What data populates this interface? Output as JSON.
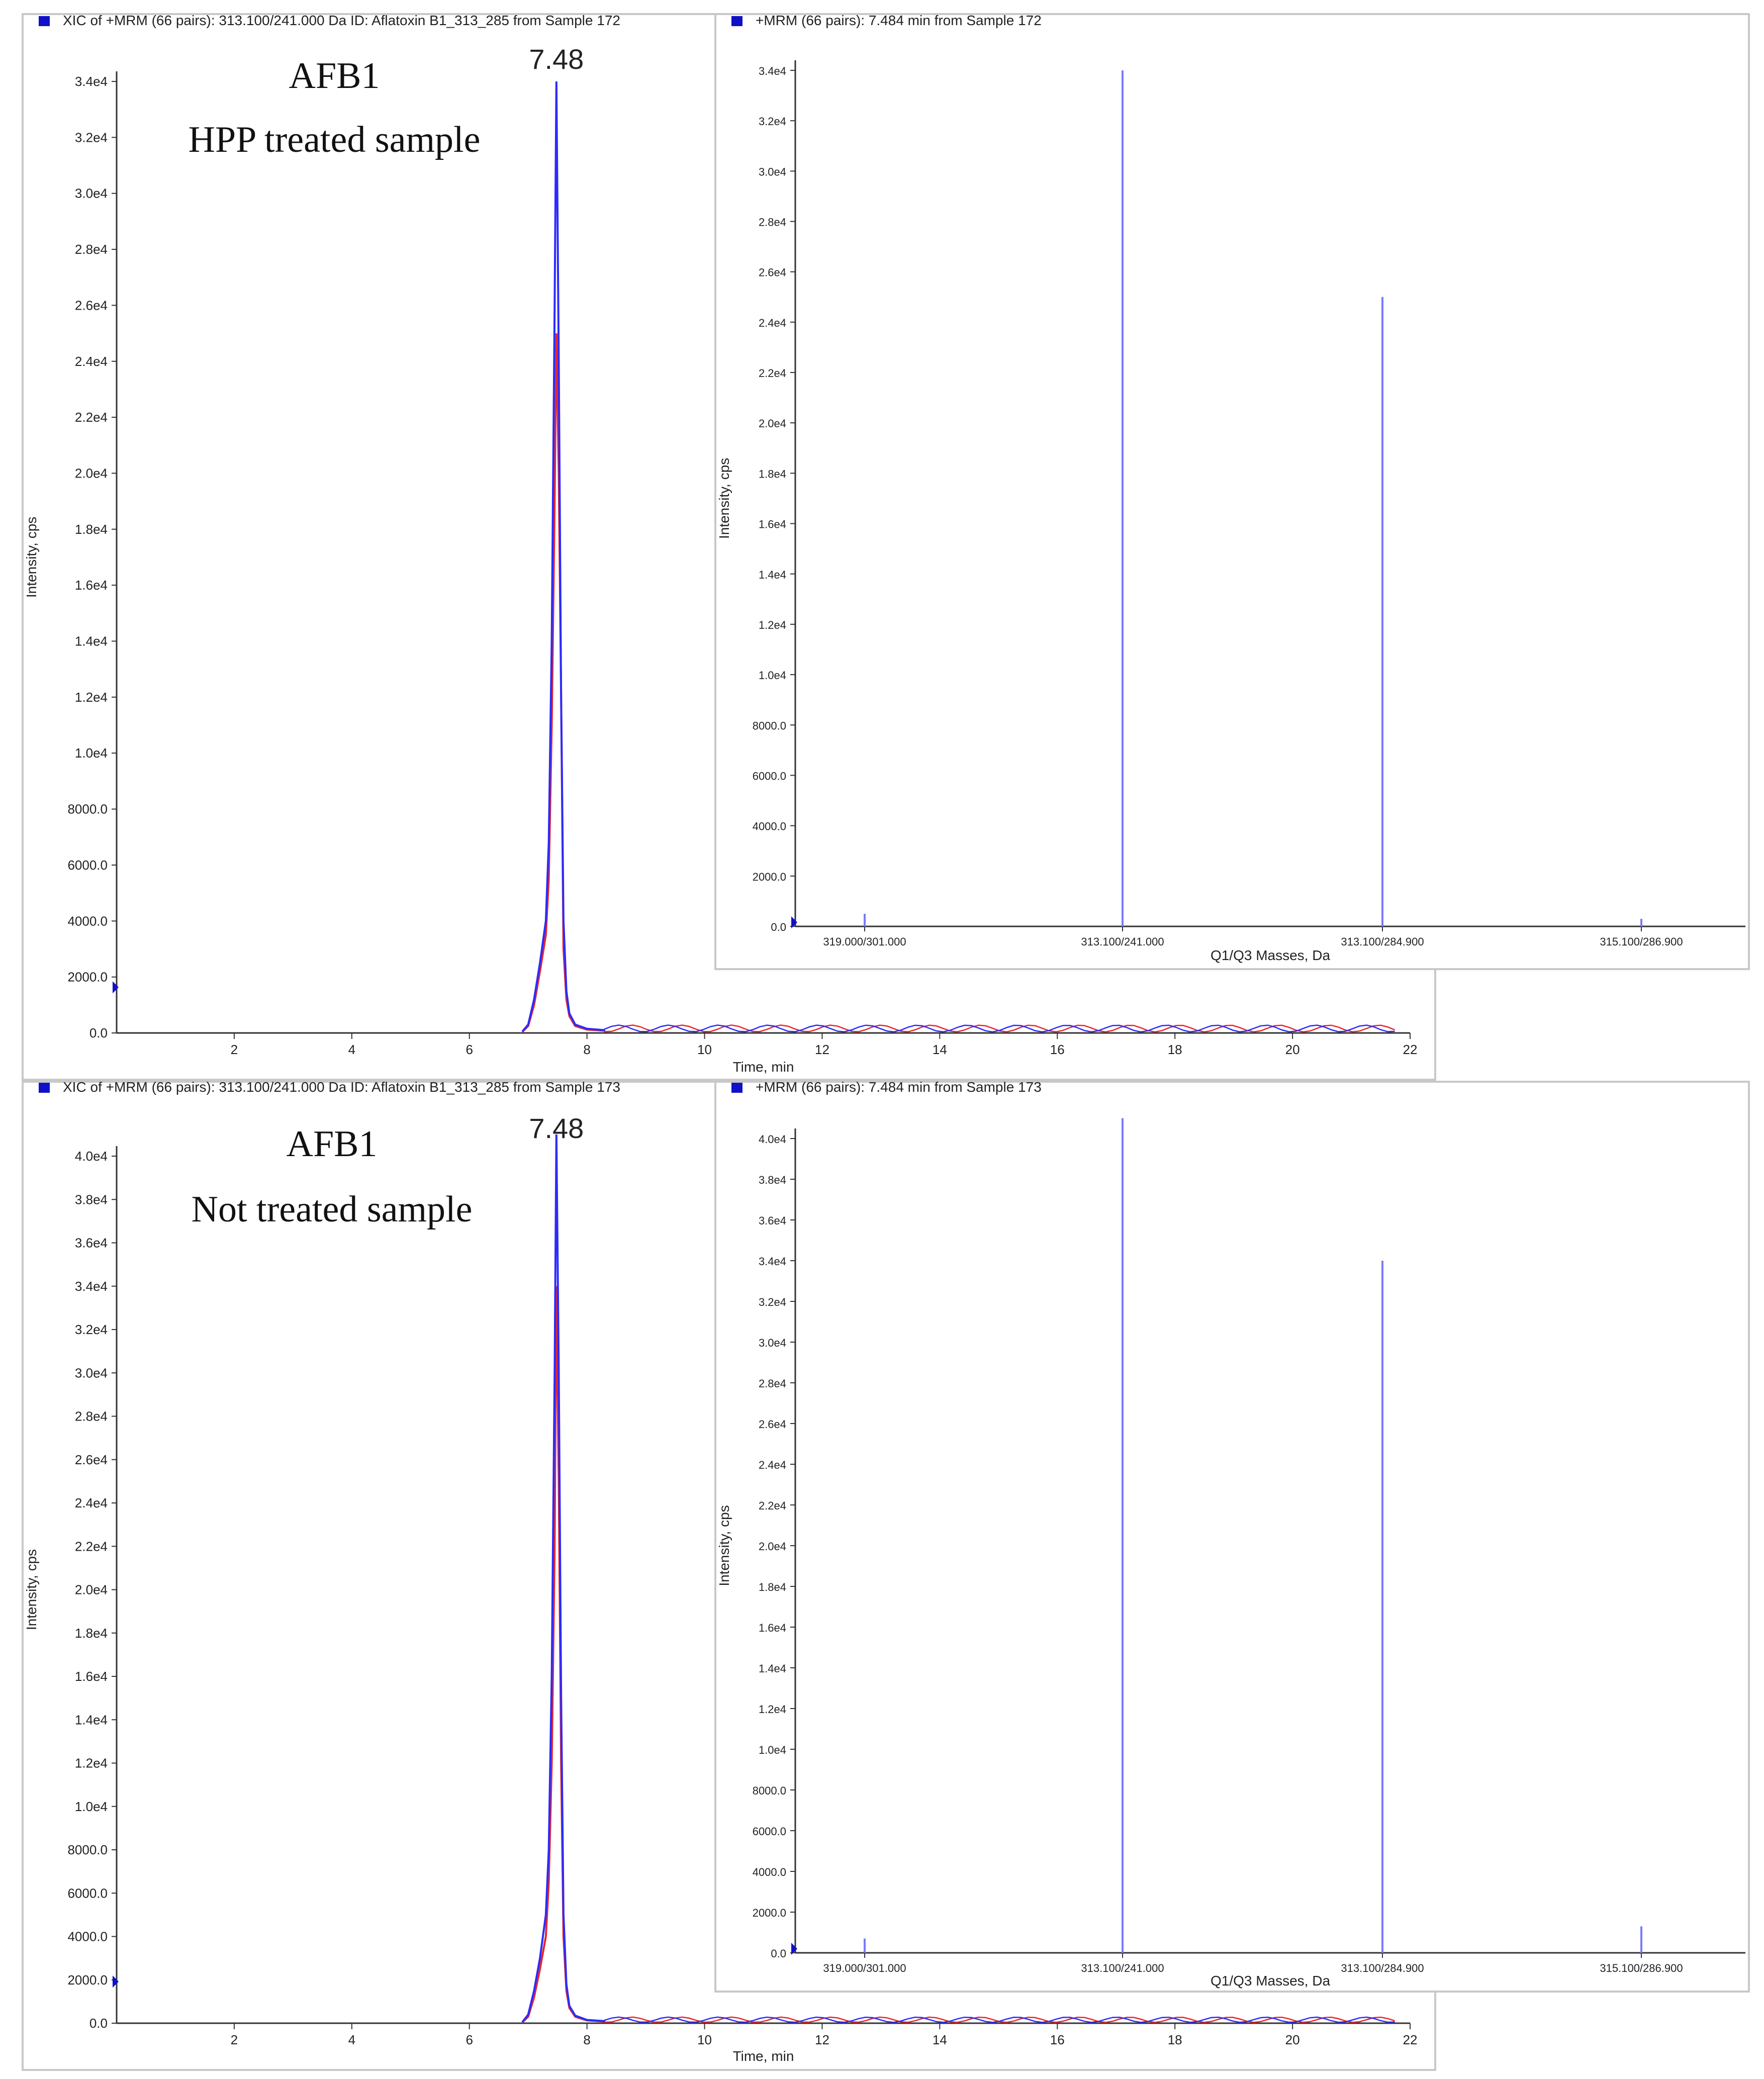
{
  "colors": {
    "blue": "#2b2bff",
    "red": "#e8262b",
    "bar": "#7a7aff",
    "frame": "#c8c8c8",
    "axis": "#333333"
  },
  "chart_data": [
    {
      "panel": "top",
      "type": "line",
      "title": "XIC of +MRM (66 pairs): 313.100/241.000 Da ID: Aflatoxin B1_313_285 from Sample 172",
      "annotations": [
        "AFB1",
        "HPP treated sample"
      ],
      "peak_label": "7.48",
      "xlabel": "Time, min",
      "ylabel": "Intensity, cps",
      "xlim": [
        0,
        22
      ],
      "ylim": [
        0,
        34000
      ],
      "xticks": [
        "2",
        "4",
        "6",
        "8",
        "10",
        "12",
        "14",
        "16",
        "18",
        "20",
        "22"
      ],
      "yticks": [
        "0.0",
        "2000.0",
        "4000.0",
        "6000.0",
        "8000.0",
        "1.0e4",
        "1.2e4",
        "1.4e4",
        "1.6e4",
        "1.8e4",
        "2.0e4",
        "2.2e4",
        "2.4e4",
        "2.6e4",
        "2.8e4",
        "3.0e4",
        "3.2e4",
        "3.4e4"
      ],
      "series": [
        {
          "color": "blue",
          "x": [
            6.9,
            7.0,
            7.1,
            7.2,
            7.3,
            7.35,
            7.4,
            7.45,
            7.48,
            7.52,
            7.56,
            7.6,
            7.65,
            7.7,
            7.8,
            8.0,
            8.3
          ],
          "y": [
            50,
            300,
            1200,
            2500,
            4000,
            6800,
            14000,
            26000,
            34000,
            24000,
            12000,
            4000,
            1500,
            700,
            300,
            150,
            100
          ]
        },
        {
          "color": "red",
          "x": [
            6.9,
            7.0,
            7.1,
            7.2,
            7.3,
            7.35,
            7.4,
            7.45,
            7.48,
            7.52,
            7.56,
            7.6,
            7.65,
            7.7,
            7.8,
            8.0,
            8.3
          ],
          "y": [
            40,
            250,
            1000,
            2200,
            3500,
            5500,
            11000,
            19000,
            25000,
            20000,
            12000,
            3000,
            1200,
            600,
            250,
            120,
            80
          ]
        }
      ]
    },
    {
      "panel": "top",
      "type": "bar",
      "title": "+MRM (66 pairs): 7.484 min from Sample 172",
      "xlabel": "Q1/Q3 Masses, Da",
      "ylabel": "Intensity, cps",
      "ylim": [
        0,
        34000
      ],
      "categories": [
        "319.000/301.000",
        "313.100/241.000",
        "313.100/284.900",
        "315.100/286.900"
      ],
      "values": [
        500,
        34000,
        25000,
        300
      ],
      "yticks": [
        "0.0",
        "2000.0",
        "4000.0",
        "6000.0",
        "8000.0",
        "1.0e4",
        "1.2e4",
        "1.4e4",
        "1.6e4",
        "1.8e4",
        "2.0e4",
        "2.2e4",
        "2.4e4",
        "2.6e4",
        "2.8e4",
        "3.0e4",
        "3.2e4",
        "3.4e4"
      ]
    },
    {
      "panel": "bottom",
      "type": "line",
      "title": "XIC of +MRM (66 pairs): 313.100/241.000 Da ID: Aflatoxin B1_313_285 from Sample 173",
      "annotations": [
        "AFB1",
        "Not treated sample"
      ],
      "peak_label": "7.48",
      "xlabel": "Time, min",
      "ylabel": "Intensity, cps",
      "xlim": [
        0,
        22
      ],
      "ylim": [
        0,
        40000
      ],
      "xticks": [
        "2",
        "4",
        "6",
        "8",
        "10",
        "12",
        "14",
        "16",
        "18",
        "20",
        "22"
      ],
      "yticks": [
        "0.0",
        "2000.0",
        "4000.0",
        "6000.0",
        "8000.0",
        "1.0e4",
        "1.2e4",
        "1.4e4",
        "1.6e4",
        "1.8e4",
        "2.0e4",
        "2.2e4",
        "2.4e4",
        "2.6e4",
        "2.8e4",
        "3.0e4",
        "3.2e4",
        "3.4e4",
        "3.6e4",
        "3.8e4",
        "4.0e4"
      ],
      "series": [
        {
          "color": "blue",
          "x": [
            6.9,
            7.0,
            7.1,
            7.2,
            7.3,
            7.35,
            7.4,
            7.45,
            7.48,
            7.52,
            7.56,
            7.6,
            7.65,
            7.7,
            7.8,
            8.0,
            8.3
          ],
          "y": [
            50,
            400,
            1500,
            3000,
            5000,
            8000,
            16000,
            30000,
            41000,
            30000,
            15000,
            5000,
            1800,
            800,
            350,
            150,
            100
          ]
        },
        {
          "color": "red",
          "x": [
            6.9,
            7.0,
            7.1,
            7.2,
            7.3,
            7.35,
            7.4,
            7.45,
            7.48,
            7.52,
            7.56,
            7.6,
            7.65,
            7.7,
            7.8,
            8.0,
            8.3
          ],
          "y": [
            40,
            300,
            1200,
            2500,
            4000,
            6500,
            12000,
            22000,
            34000,
            25000,
            12000,
            4000,
            1500,
            700,
            300,
            130,
            80
          ]
        }
      ]
    },
    {
      "panel": "bottom",
      "type": "bar",
      "title": "+MRM (66 pairs): 7.484 min from Sample 173",
      "xlabel": "Q1/Q3 Masses, Da",
      "ylabel": "Intensity, cps",
      "ylim": [
        0,
        40000
      ],
      "categories": [
        "319.000/301.000",
        "313.100/241.000",
        "313.100/284.900",
        "315.100/286.900"
      ],
      "values": [
        700,
        41000,
        34000,
        1300
      ],
      "yticks": [
        "0.0",
        "2000.0",
        "4000.0",
        "6000.0",
        "8000.0",
        "1.0e4",
        "1.2e4",
        "1.4e4",
        "1.6e4",
        "1.8e4",
        "2.0e4",
        "2.2e4",
        "2.4e4",
        "2.6e4",
        "2.8e4",
        "3.0e4",
        "3.2e4",
        "3.4e4",
        "3.6e4",
        "3.8e4",
        "4.0e4"
      ]
    }
  ]
}
